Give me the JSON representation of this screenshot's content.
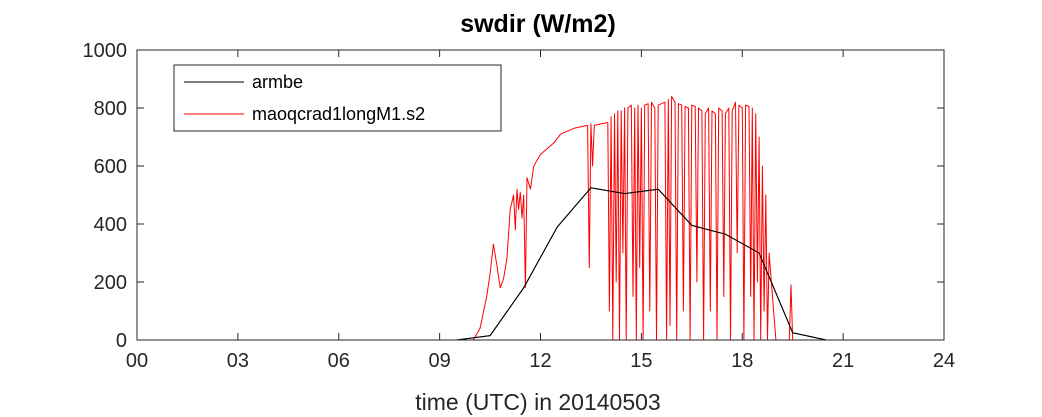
{
  "chart_data": {
    "type": "line",
    "title": "swdir  (W/m2)",
    "xlabel": "time (UTC) in 20140503",
    "ylabel": "",
    "xlim": [
      0,
      24
    ],
    "ylim": [
      0,
      1000
    ],
    "x_ticks": [
      0,
      3,
      6,
      9,
      12,
      15,
      18,
      21,
      24
    ],
    "x_tick_labels": [
      "00",
      "03",
      "06",
      "09",
      "12",
      "15",
      "18",
      "21",
      "24"
    ],
    "y_ticks": [
      0,
      200,
      400,
      600,
      800,
      1000
    ],
    "y_tick_labels": [
      "0",
      "200",
      "400",
      "600",
      "800",
      "1000"
    ],
    "grid": false,
    "legend_position": "top-left",
    "series": [
      {
        "name": "armbe",
        "color": "#000000",
        "x": [
          0,
          9.5,
          10.5,
          11.5,
          12.5,
          13.5,
          14.5,
          15.5,
          16.5,
          17.5,
          18.5,
          19.5,
          20.5,
          24
        ],
        "y": [
          0,
          0,
          15,
          180,
          390,
          525,
          505,
          520,
          395,
          365,
          300,
          25,
          0,
          0
        ]
      },
      {
        "name": "maoqcrad1longM1.s2",
        "color": "#ff0000",
        "x": [
          0,
          10.0,
          10.2,
          10.4,
          10.5,
          10.6,
          10.7,
          10.8,
          10.9,
          11.0,
          11.1,
          11.2,
          11.25,
          11.3,
          11.35,
          11.4,
          11.45,
          11.5,
          11.55,
          11.6,
          11.7,
          11.8,
          11.9,
          12.0,
          12.2,
          12.4,
          12.6,
          12.8,
          13.0,
          13.2,
          13.4,
          13.45,
          13.5,
          13.55,
          13.6,
          13.8,
          14.0,
          14.05,
          14.1,
          14.15,
          14.2,
          14.25,
          14.3,
          14.35,
          14.4,
          14.45,
          14.5,
          14.55,
          14.6,
          14.7,
          14.75,
          14.8,
          14.85,
          14.9,
          14.95,
          15.0,
          15.05,
          15.1,
          15.2,
          15.25,
          15.3,
          15.4,
          15.45,
          15.5,
          15.6,
          15.7,
          15.75,
          15.8,
          15.85,
          15.9,
          16.0,
          16.05,
          16.1,
          16.2,
          16.25,
          16.3,
          16.4,
          16.45,
          16.5,
          16.6,
          16.65,
          16.7,
          16.8,
          16.85,
          16.9,
          17.0,
          17.05,
          17.1,
          17.2,
          17.25,
          17.3,
          17.4,
          17.45,
          17.5,
          17.6,
          17.65,
          17.7,
          17.8,
          17.85,
          17.9,
          18.0,
          18.05,
          18.1,
          18.2,
          18.25,
          18.3,
          18.35,
          18.4,
          18.45,
          18.5,
          18.55,
          18.6,
          18.65,
          18.7,
          18.75,
          18.8,
          19.0,
          19.2,
          19.4,
          19.45,
          19.5,
          19.6,
          24
        ],
        "y": [
          0,
          0,
          40,
          150,
          230,
          330,
          260,
          180,
          210,
          280,
          450,
          500,
          380,
          520,
          450,
          510,
          420,
          500,
          180,
          560,
          520,
          600,
          620,
          640,
          660,
          680,
          710,
          720,
          730,
          735,
          740,
          250,
          745,
          600,
          740,
          745,
          750,
          100,
          770,
          0,
          780,
          200,
          790,
          0,
          790,
          300,
          800,
          0,
          800,
          810,
          150,
          800,
          0,
          810,
          250,
          800,
          0,
          810,
          815,
          100,
          820,
          800,
          0,
          810,
          815,
          820,
          0,
          830,
          50,
          840,
          820,
          0,
          815,
          810,
          100,
          805,
          800,
          0,
          810,
          805,
          200,
          800,
          790,
          0,
          780,
          800,
          100,
          790,
          780,
          0,
          800,
          790,
          150,
          780,
          800,
          0,
          790,
          820,
          300,
          810,
          800,
          0,
          810,
          805,
          150,
          800,
          0,
          780,
          200,
          700,
          0,
          600,
          100,
          500,
          0,
          300,
          0,
          0,
          0,
          190,
          0,
          0,
          0
        ]
      }
    ]
  }
}
